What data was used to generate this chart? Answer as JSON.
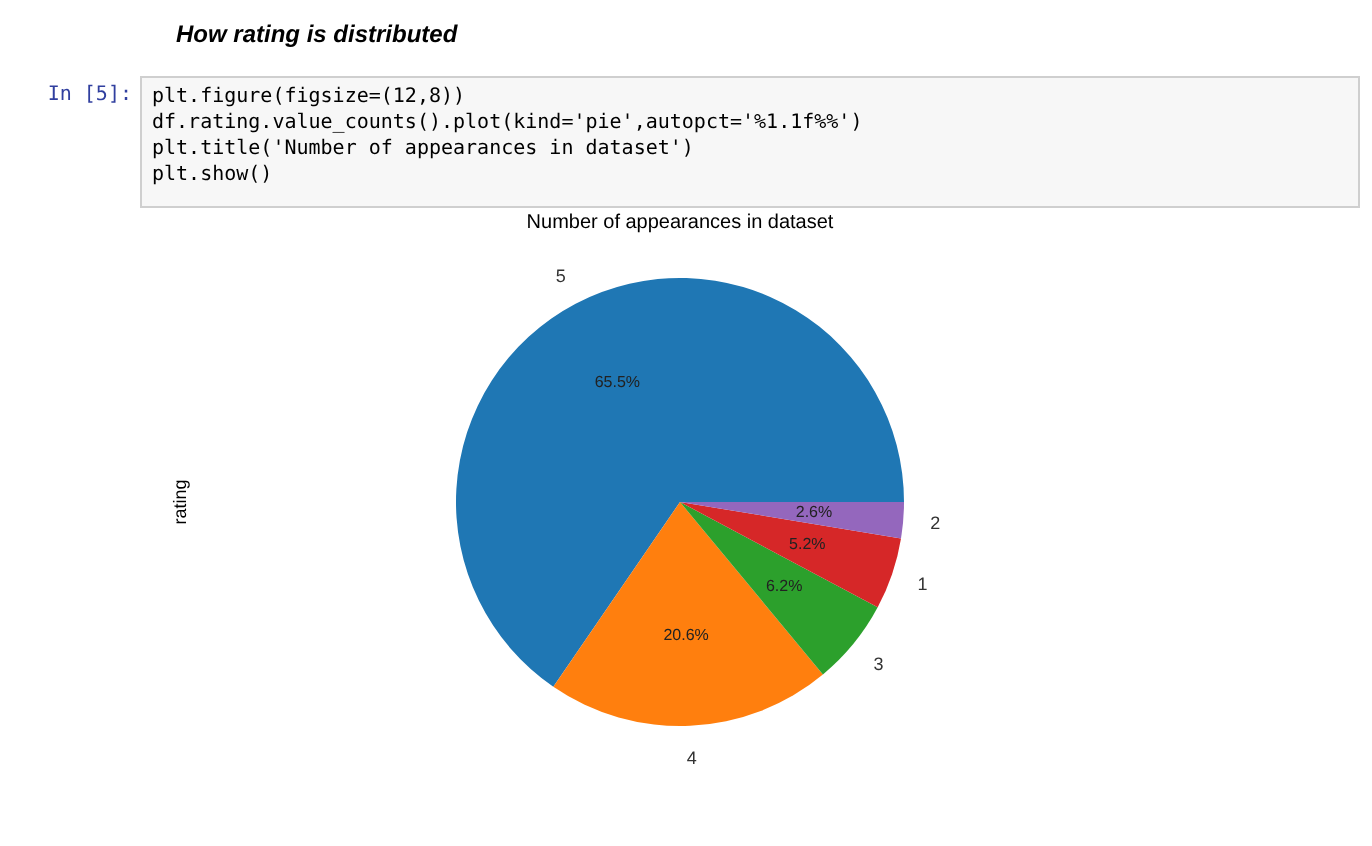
{
  "chart_data": {
    "type": "pie",
    "title": "Number of appearances in dataset",
    "ylabel": "rating",
    "categories": [
      "5",
      "4",
      "3",
      "1",
      "2"
    ],
    "values": [
      65.5,
      20.6,
      6.2,
      5.2,
      2.6
    ],
    "value_labels": [
      "65.5%",
      "20.6%",
      "6.2%",
      "5.2%",
      "2.6%"
    ],
    "colors": [
      "#1f77b4",
      "#ff7f0e",
      "#2ca02c",
      "#d62728",
      "#9467bd"
    ],
    "legend": false,
    "annotations": [
      "How rating is distributed",
      "In [5]:",
      "plt.figure(figsize=(12,8))",
      "df.rating.value_counts().plot(kind='pie',autopct='%1.1f%%')",
      "plt.title('Number of appearances in dataset')",
      "plt.show()"
    ]
  }
}
